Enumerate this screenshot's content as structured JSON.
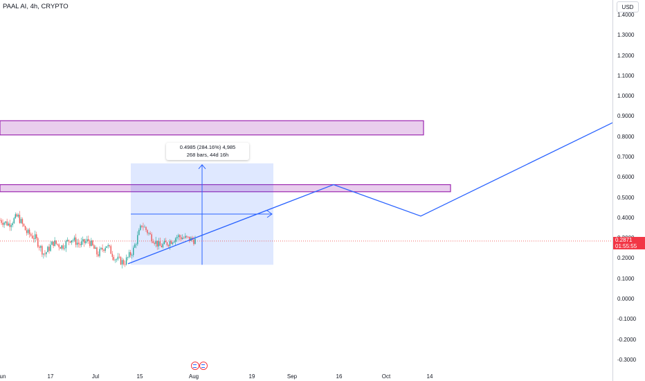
{
  "header": {
    "title": "PAAL AI, 4h, CRYPTO"
  },
  "price_axis": {
    "currency_button": "USD",
    "ticks": [
      "1.4000",
      "1.3000",
      "1.2000",
      "1.1000",
      "1.0000",
      "0.9000",
      "0.8000",
      "0.7000",
      "0.6000",
      "0.5000",
      "0.4000",
      "0.3000",
      "0.2000",
      "0.1000",
      "0.0000",
      "-0.1000",
      "-0.2000",
      "-0.3000"
    ],
    "tick_values": [
      1.4,
      1.3,
      1.2,
      1.1,
      1.0,
      0.9,
      0.8,
      0.7,
      0.6,
      0.5,
      0.4,
      0.3,
      0.2,
      0.1,
      0.0,
      -0.1,
      -0.2,
      -0.3
    ],
    "current_price": "0.2871",
    "countdown": "01:55:55"
  },
  "time_axis": {
    "labels": [
      {
        "text": "Jun"
      },
      {
        "text": "17"
      },
      {
        "text": "Jul"
      },
      {
        "text": "15"
      },
      {
        "text": "Aug"
      },
      {
        "text": "19"
      },
      {
        "text": "Sep"
      },
      {
        "text": "16"
      },
      {
        "text": "Oct"
      },
      {
        "text": "14"
      }
    ]
  },
  "measure_tool": {
    "line1": "0.4985 (284.16%) 4,985",
    "line2": "268 bars, 44d 16h"
  },
  "colors": {
    "up": "#26a69a",
    "down": "#ef5350",
    "drawing": "#2962ff",
    "zone_fill": "#e1bee7",
    "zone_border": "#9c27b0",
    "price_tag": "#f23645"
  },
  "chart_data": {
    "type": "candlestick",
    "symbol": "PAAL AI",
    "interval": "4h",
    "exchange": "CRYPTO",
    "ylim": [
      -0.3,
      1.4
    ],
    "resistance_zones": [
      [
        0.81,
        0.88
      ],
      [
        0.53,
        0.565
      ]
    ],
    "price_path": [
      0.39,
      0.37,
      0.41,
      0.33,
      0.3,
      0.22,
      0.28,
      0.26,
      0.3,
      0.27,
      0.29,
      0.22,
      0.27,
      0.2,
      0.18,
      0.24,
      0.37,
      0.31,
      0.26,
      0.28,
      0.31,
      0.3,
      0.29
    ],
    "projection": [
      0.175,
      0.565,
      0.41,
      0.87
    ],
    "measure_range": [
      0.17,
      0.67
    ]
  }
}
